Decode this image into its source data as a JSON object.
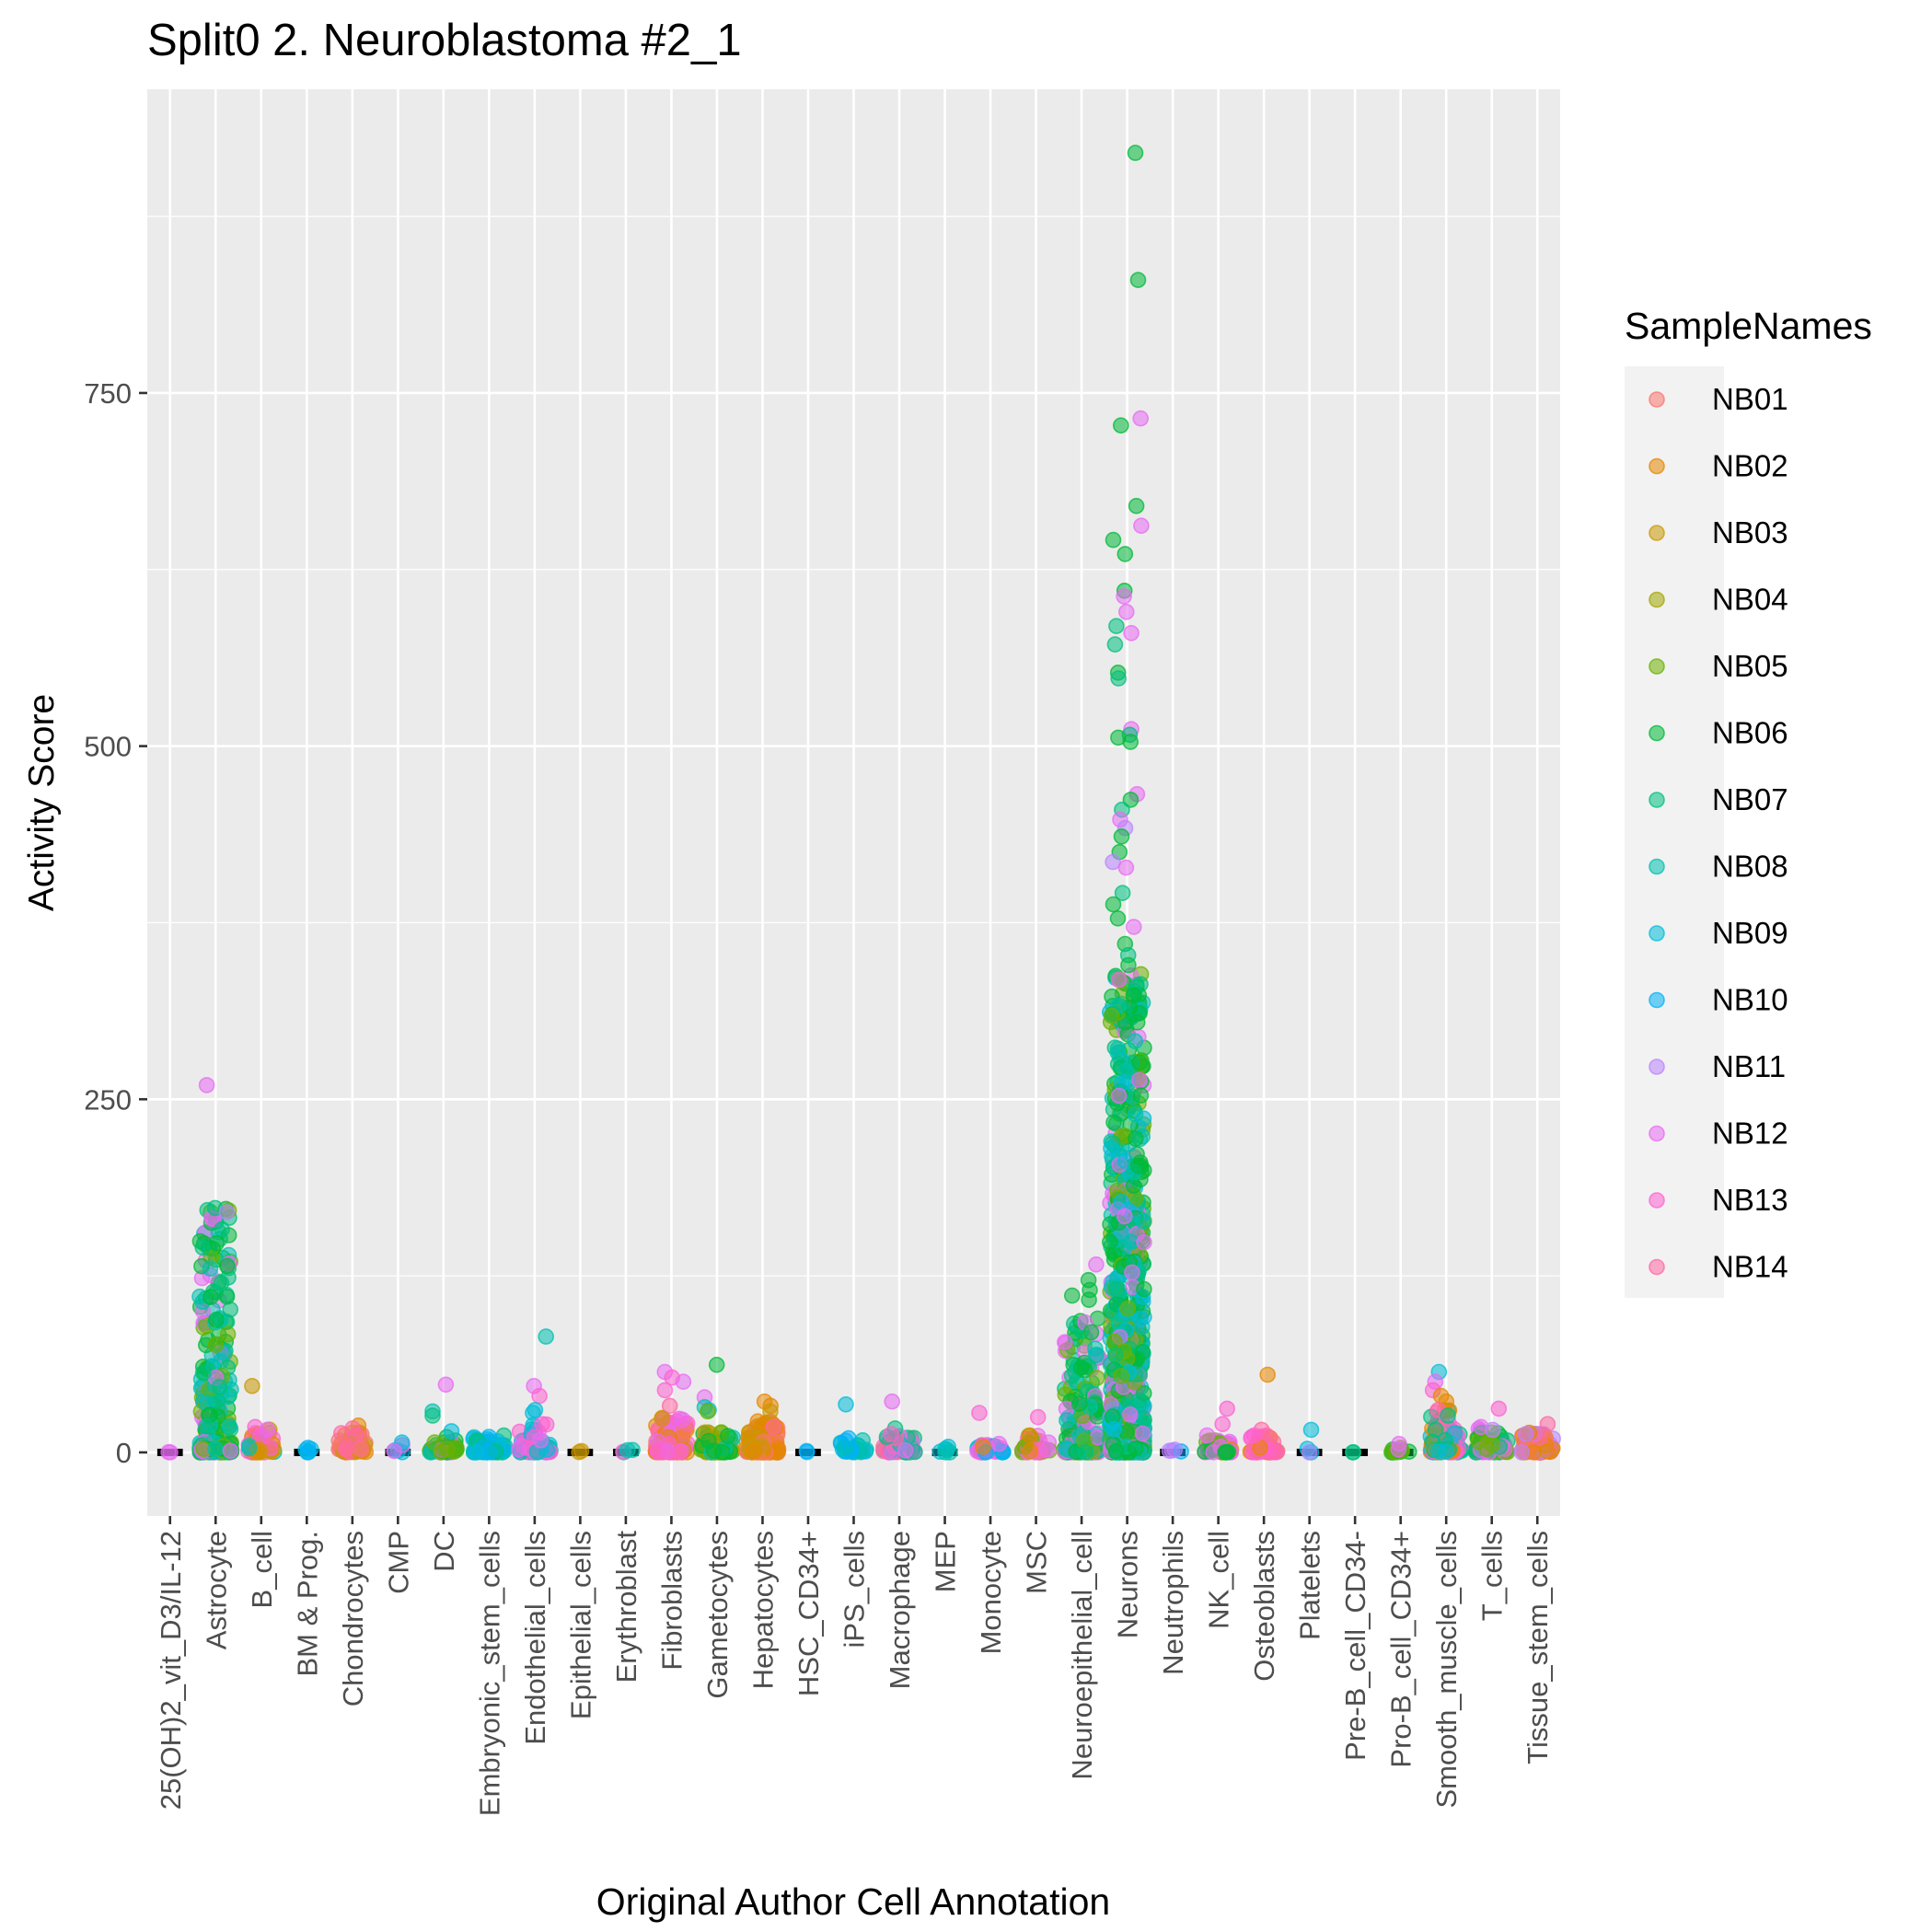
{
  "chart_data": {
    "type": "scatter",
    "title": "Split0 2. Neuroblastoma #2_1",
    "xlabel": "Original Author Cell Annotation",
    "ylabel": "Activity Score",
    "ylim": [
      -45,
      965
    ],
    "yticks": [
      0,
      250,
      500,
      750
    ],
    "grid": true,
    "legend_position": "right",
    "legend_title": "SampleNames",
    "categories": [
      "25(OH)2_vit_D3/IL-12",
      "Astrocyte",
      "B_cell",
      "BM & Prog.",
      "Chondrocytes",
      "CMP",
      "DC",
      "Embryonic_stem_cells",
      "Endothelial_cells",
      "Epithelial_cells",
      "Erythroblast",
      "Fibroblasts",
      "Gametocytes",
      "Hepatocytes",
      "HSC_CD34+",
      "iPS_cells",
      "Macrophage",
      "MEP",
      "Monocyte",
      "MSC",
      "Neuroepithelial_cell",
      "Neurons",
      "Neutrophils",
      "NK_cell",
      "Osteoblasts",
      "Platelets",
      "Pre-B_cell_CD34-",
      "Pro-B_cell_CD34+",
      "Smooth_muscle_cells",
      "T_cells",
      "Tissue_stem_cells"
    ],
    "series": [
      {
        "name": "NB01",
        "color": "#F8766D"
      },
      {
        "name": "NB02",
        "color": "#E58700"
      },
      {
        "name": "NB03",
        "color": "#C99800"
      },
      {
        "name": "NB04",
        "color": "#A3A500"
      },
      {
        "name": "NB05",
        "color": "#6BB100"
      },
      {
        "name": "NB06",
        "color": "#00BA38"
      },
      {
        "name": "NB07",
        "color": "#00BF7D"
      },
      {
        "name": "NB08",
        "color": "#00C0AF"
      },
      {
        "name": "NB09",
        "color": "#00BCD8"
      },
      {
        "name": "NB10",
        "color": "#00B0F6"
      },
      {
        "name": "NB11",
        "color": "#B983FF"
      },
      {
        "name": "NB12",
        "color": "#E76BF3"
      },
      {
        "name": "NB13",
        "color": "#FD61D1"
      },
      {
        "name": "NB14",
        "color": "#FF67A4"
      }
    ],
    "groups": [
      {
        "category": "25(OH)2_vit_D3/IL-12",
        "n": 2,
        "max": 2,
        "spread": 0.05,
        "sat": 0.02,
        "samples": [
          "NB12"
        ],
        "extras": []
      },
      {
        "category": "Astrocyte",
        "n": 300,
        "max": 175,
        "spread": 0.35,
        "sat": 0.28,
        "samples": [
          "NB06",
          "NB07",
          "NB08",
          "NB05",
          "NB12"
        ],
        "extras": [
          {
            "y": 260,
            "s": "NB12"
          },
          {
            "y": 173,
            "s": "NB07"
          },
          {
            "y": 170,
            "s": "NB11"
          },
          {
            "y": 158,
            "s": "NB07"
          },
          {
            "y": 148,
            "s": "NB06"
          },
          {
            "y": 145,
            "s": "NB07"
          },
          {
            "y": 132,
            "s": "NB06"
          },
          {
            "y": 120,
            "s": "NB07"
          },
          {
            "y": 110,
            "s": "NB06"
          }
        ]
      },
      {
        "category": "B_cell",
        "n": 45,
        "max": 18,
        "spread": 0.3,
        "sat": 0.2,
        "samples": [
          "NB02",
          "NB08",
          "NB13",
          "NB03"
        ],
        "extras": [
          {
            "y": 47,
            "s": "NB03"
          },
          {
            "y": 18,
            "s": "NB13"
          },
          {
            "y": 16,
            "s": "NB12"
          }
        ]
      },
      {
        "category": "BM & Prog.",
        "n": 6,
        "max": 6,
        "spread": 0.1,
        "sat": 0.3,
        "samples": [
          "NB09",
          "NB10"
        ],
        "extras": []
      },
      {
        "category": "Chondrocytes",
        "n": 60,
        "max": 15,
        "spread": 0.3,
        "sat": 0.3,
        "samples": [
          "NB02",
          "NB01",
          "NB14",
          "NB03"
        ],
        "extras": [
          {
            "y": 19,
            "s": "NB02"
          },
          {
            "y": 17,
            "s": "NB14"
          },
          {
            "y": 12,
            "s": "NB14"
          }
        ]
      },
      {
        "category": "CMP",
        "n": 4,
        "max": 6,
        "spread": 0.15,
        "sat": 0.2,
        "samples": [
          "NB09",
          "NB12"
        ],
        "extras": [
          {
            "y": 7,
            "s": "NB09"
          },
          {
            "y": 1,
            "s": "NB12"
          }
        ]
      },
      {
        "category": "DC",
        "n": 40,
        "max": 12,
        "spread": 0.3,
        "sat": 0.3,
        "samples": [
          "NB06",
          "NB08",
          "NB05",
          "NB12"
        ],
        "extras": [
          {
            "y": 48,
            "s": "NB12"
          },
          {
            "y": 29,
            "s": "NB08"
          },
          {
            "y": 26,
            "s": "NB07"
          },
          {
            "y": 15,
            "s": "NB09"
          }
        ]
      },
      {
        "category": "Embryonic_stem_cells",
        "n": 80,
        "max": 12,
        "spread": 0.35,
        "sat": 0.3,
        "samples": [
          "NB08",
          "NB09",
          "NB10",
          "NB07"
        ],
        "extras": []
      },
      {
        "category": "Endothelial_cells",
        "n": 70,
        "max": 20,
        "spread": 0.35,
        "sat": 0.3,
        "samples": [
          "NB09",
          "NB08",
          "NB13",
          "NB12"
        ],
        "extras": [
          {
            "y": 82,
            "s": "NB08"
          },
          {
            "y": 47,
            "s": "NB12"
          },
          {
            "y": 40,
            "s": "NB13"
          },
          {
            "y": 30,
            "s": "NB09"
          },
          {
            "y": 28,
            "s": "NB09"
          },
          {
            "y": 20,
            "s": "NB13"
          }
        ]
      },
      {
        "category": "Epithelial_cells",
        "n": 2,
        "max": 1,
        "spread": 0.05,
        "sat": 0.2,
        "samples": [
          "NB03"
        ],
        "extras": []
      },
      {
        "category": "Erythroblast",
        "n": 4,
        "max": 2,
        "spread": 0.15,
        "sat": 0.2,
        "samples": [
          "NB08",
          "NB13"
        ],
        "extras": []
      },
      {
        "category": "Fibroblasts",
        "n": 110,
        "max": 25,
        "spread": 0.35,
        "sat": 0.3,
        "samples": [
          "NB02",
          "NB13",
          "NB14",
          "NB01",
          "NB12"
        ],
        "extras": [
          {
            "y": 57,
            "s": "NB12"
          },
          {
            "y": 53,
            "s": "NB13"
          },
          {
            "y": 50,
            "s": "NB12"
          },
          {
            "y": 44,
            "s": "NB13"
          },
          {
            "y": 33,
            "s": "NB14"
          },
          {
            "y": 24,
            "s": "NB03"
          }
        ]
      },
      {
        "category": "Gametocytes",
        "n": 80,
        "max": 15,
        "spread": 0.35,
        "sat": 0.3,
        "samples": [
          "NB05",
          "NB06",
          "NB08",
          "NB03"
        ],
        "extras": [
          {
            "y": 62,
            "s": "NB06"
          },
          {
            "y": 39,
            "s": "NB12"
          },
          {
            "y": 32,
            "s": "NB08"
          },
          {
            "y": 30,
            "s": "NB09"
          },
          {
            "y": 29,
            "s": "NB05"
          }
        ]
      },
      {
        "category": "Hepatocytes",
        "n": 160,
        "max": 22,
        "spread": 0.35,
        "sat": 0.3,
        "samples": [
          "NB02",
          "NB02",
          "NB03",
          "NB01"
        ],
        "extras": [
          {
            "y": 36,
            "s": "NB02"
          },
          {
            "y": 33,
            "s": "NB02"
          },
          {
            "y": 29,
            "s": "NB03"
          },
          {
            "y": 22,
            "s": "NB02"
          },
          {
            "y": 18,
            "s": "NB14"
          }
        ]
      },
      {
        "category": "HSC_CD34+",
        "n": 2,
        "max": 1,
        "spread": 0.05,
        "sat": 0.2,
        "samples": [
          "NB10"
        ],
        "extras": []
      },
      {
        "category": "iPS_cells",
        "n": 30,
        "max": 10,
        "spread": 0.3,
        "sat": 0.3,
        "samples": [
          "NB09",
          "NB10",
          "NB08"
        ],
        "extras": [
          {
            "y": 34,
            "s": "NB09"
          },
          {
            "y": 10,
            "s": "NB10"
          }
        ]
      },
      {
        "category": "Macrophage",
        "n": 60,
        "max": 12,
        "spread": 0.35,
        "sat": 0.3,
        "samples": [
          "NB08",
          "NB07",
          "NB14",
          "NB12"
        ],
        "extras": [
          {
            "y": 36,
            "s": "NB12"
          },
          {
            "y": 17,
            "s": "NB07"
          },
          {
            "y": 13,
            "s": "NB13"
          }
        ]
      },
      {
        "category": "MEP",
        "n": 4,
        "max": 4,
        "spread": 0.15,
        "sat": 0.2,
        "samples": [
          "NB09",
          "NB08"
        ],
        "extras": [
          {
            "y": 4,
            "s": "NB09"
          },
          {
            "y": 0,
            "s": "NB08"
          }
        ]
      },
      {
        "category": "Monocyte",
        "n": 35,
        "max": 6,
        "spread": 0.3,
        "sat": 0.3,
        "samples": [
          "NB10",
          "NB09",
          "NB13",
          "NB12"
        ],
        "extras": [
          {
            "y": 28,
            "s": "NB13"
          },
          {
            "y": 6,
            "s": "NB12"
          },
          {
            "y": 4,
            "s": "NB02"
          }
        ]
      },
      {
        "category": "MSC",
        "n": 35,
        "max": 12,
        "spread": 0.3,
        "sat": 0.3,
        "samples": [
          "NB14",
          "NB02",
          "NB12",
          "NB05"
        ],
        "extras": [
          {
            "y": 25,
            "s": "NB13"
          },
          {
            "y": 12,
            "s": "NB02"
          }
        ]
      },
      {
        "category": "Neuroepithelial_cell",
        "n": 260,
        "max": 95,
        "spread": 0.38,
        "sat": 0.3,
        "samples": [
          "NB06",
          "NB07",
          "NB05",
          "NB08",
          "NB12"
        ],
        "extras": [
          {
            "y": 133,
            "s": "NB12"
          },
          {
            "y": 122,
            "s": "NB06"
          },
          {
            "y": 115,
            "s": "NB06"
          },
          {
            "y": 111,
            "s": "NB06"
          },
          {
            "y": 108,
            "s": "NB06"
          },
          {
            "y": 92,
            "s": "NB12"
          },
          {
            "y": 85,
            "s": "NB06"
          },
          {
            "y": 60,
            "s": "NB06"
          }
        ]
      },
      {
        "category": "Neurons",
        "n": 900,
        "max": 340,
        "spread": 0.38,
        "sat": 0.14,
        "samples": [
          "NB06",
          "NB06",
          "NB07",
          "NB08",
          "NB09",
          "NB12",
          "NB05"
        ],
        "extras": [
          {
            "y": 920,
            "s": "NB06"
          },
          {
            "y": 830,
            "s": "NB06"
          },
          {
            "y": 732,
            "s": "NB12"
          },
          {
            "y": 727,
            "s": "NB06"
          },
          {
            "y": 670,
            "s": "NB06"
          },
          {
            "y": 656,
            "s": "NB12"
          },
          {
            "y": 646,
            "s": "NB06"
          },
          {
            "y": 636,
            "s": "NB06"
          },
          {
            "y": 610,
            "s": "NB06"
          },
          {
            "y": 606,
            "s": "NB12"
          },
          {
            "y": 595,
            "s": "NB12"
          },
          {
            "y": 585,
            "s": "NB07"
          },
          {
            "y": 580,
            "s": "NB12"
          },
          {
            "y": 572,
            "s": "NB07"
          },
          {
            "y": 552,
            "s": "NB06"
          },
          {
            "y": 548,
            "s": "NB07"
          },
          {
            "y": 512,
            "s": "NB12"
          },
          {
            "y": 508,
            "s": "NB07"
          },
          {
            "y": 506,
            "s": "NB06"
          },
          {
            "y": 503,
            "s": "NB06"
          },
          {
            "y": 466,
            "s": "NB12"
          },
          {
            "y": 462,
            "s": "NB06"
          },
          {
            "y": 455,
            "s": "NB07"
          },
          {
            "y": 448,
            "s": "NB12"
          },
          {
            "y": 442,
            "s": "NB11"
          },
          {
            "y": 436,
            "s": "NB06"
          },
          {
            "y": 425,
            "s": "NB06"
          },
          {
            "y": 418,
            "s": "NB11"
          },
          {
            "y": 414,
            "s": "NB12"
          },
          {
            "y": 396,
            "s": "NB07"
          },
          {
            "y": 388,
            "s": "NB06"
          },
          {
            "y": 378,
            "s": "NB06"
          },
          {
            "y": 372,
            "s": "NB12"
          },
          {
            "y": 360,
            "s": "NB06"
          },
          {
            "y": 352,
            "s": "NB07"
          },
          {
            "y": 345,
            "s": "NB06"
          }
        ]
      },
      {
        "category": "Neutrophils",
        "n": 4,
        "max": 2,
        "spread": 0.2,
        "sat": 0.2,
        "samples": [
          "NB10",
          "NB11"
        ],
        "extras": []
      },
      {
        "category": "NK_cell",
        "n": 40,
        "max": 12,
        "spread": 0.3,
        "sat": 0.3,
        "samples": [
          "NB05",
          "NB06",
          "NB02",
          "NB12"
        ],
        "extras": [
          {
            "y": 31,
            "s": "NB13"
          },
          {
            "y": 20,
            "s": "NB13"
          },
          {
            "y": 12,
            "s": "NB12"
          }
        ]
      },
      {
        "category": "Osteoblasts",
        "n": 50,
        "max": 12,
        "spread": 0.3,
        "sat": 0.3,
        "samples": [
          "NB01",
          "NB14",
          "NB13",
          "NB02"
        ],
        "extras": [
          {
            "y": 55,
            "s": "NB02"
          },
          {
            "y": 16,
            "s": "NB14"
          },
          {
            "y": 12,
            "s": "NB13"
          }
        ]
      },
      {
        "category": "Platelets",
        "n": 2,
        "max": 15,
        "spread": 0.05,
        "sat": 0.2,
        "samples": [
          "NB09"
        ],
        "extras": [
          {
            "y": 16,
            "s": "NB09"
          },
          {
            "y": 0,
            "s": "NB11"
          }
        ]
      },
      {
        "category": "Pre-B_cell_CD34-",
        "n": 2,
        "max": 1,
        "spread": 0.05,
        "sat": 0.2,
        "samples": [
          "NB07"
        ],
        "extras": []
      },
      {
        "category": "Pro-B_cell_CD34+",
        "n": 12,
        "max": 5,
        "spread": 0.2,
        "sat": 0.3,
        "samples": [
          "NB05",
          "NB12",
          "NB06"
        ],
        "extras": [
          {
            "y": 6,
            "s": "NB12"
          }
        ]
      },
      {
        "category": "Smooth_muscle_cells",
        "n": 110,
        "max": 30,
        "spread": 0.35,
        "sat": 0.3,
        "samples": [
          "NB02",
          "NB14",
          "NB13",
          "NB07",
          "NB09"
        ],
        "extras": [
          {
            "y": 57,
            "s": "NB09"
          },
          {
            "y": 50,
            "s": "NB12"
          },
          {
            "y": 44,
            "s": "NB13"
          },
          {
            "y": 40,
            "s": "NB02"
          },
          {
            "y": 36,
            "s": "NB02"
          },
          {
            "y": 30,
            "s": "NB14"
          },
          {
            "y": 26,
            "s": "NB07"
          }
        ]
      },
      {
        "category": "T_cells",
        "n": 70,
        "max": 18,
        "spread": 0.35,
        "sat": 0.3,
        "samples": [
          "NB05",
          "NB06",
          "NB12",
          "NB07"
        ],
        "extras": [
          {
            "y": 31,
            "s": "NB13"
          },
          {
            "y": 18,
            "s": "NB12"
          },
          {
            "y": 16,
            "s": "NB11"
          }
        ]
      },
      {
        "category": "Tissue_stem_cells",
        "n": 90,
        "max": 14,
        "spread": 0.35,
        "sat": 0.3,
        "samples": [
          "NB02",
          "NB01",
          "NB14",
          "NB11"
        ],
        "extras": [
          {
            "y": 20,
            "s": "NB14"
          },
          {
            "y": 14,
            "s": "NB02"
          },
          {
            "y": 13,
            "s": "NB11"
          }
        ]
      }
    ]
  }
}
